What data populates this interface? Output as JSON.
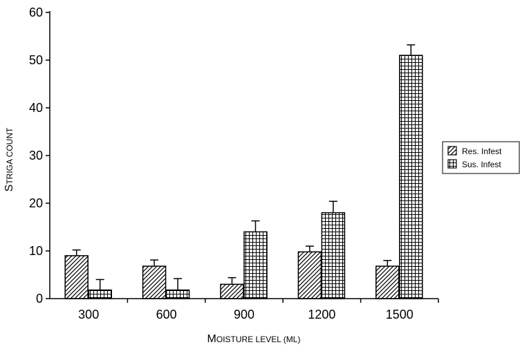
{
  "chart_data": {
    "type": "bar",
    "categories": [
      "300",
      "600",
      "900",
      "1200",
      "1500"
    ],
    "series": [
      {
        "name": "Res. Infest",
        "values": [
          9,
          6.8,
          3,
          9.8,
          6.8
        ],
        "errors": [
          1.2,
          1.3,
          1.4,
          1.2,
          1.2
        ],
        "pattern": "hatch"
      },
      {
        "name": "Sus. Infest",
        "values": [
          1.8,
          1.8,
          14,
          18,
          51
        ],
        "errors": [
          2.2,
          2.4,
          2.3,
          2.4,
          2.2
        ],
        "pattern": "grid"
      }
    ],
    "xlabel": {
      "cap": "M",
      "rest": "OISTURE LEVEL (ML)"
    },
    "ylabel": {
      "cap": "S",
      "rest": "TRIGA COUNT"
    },
    "ylim": [
      0,
      60
    ],
    "yticks": [
      "0",
      "10",
      "20",
      "30",
      "40",
      "50",
      "60"
    ],
    "grid": false,
    "legend_position": "right",
    "colors": {
      "bar_fill": "#ffffff",
      "stroke": "#000000"
    }
  }
}
